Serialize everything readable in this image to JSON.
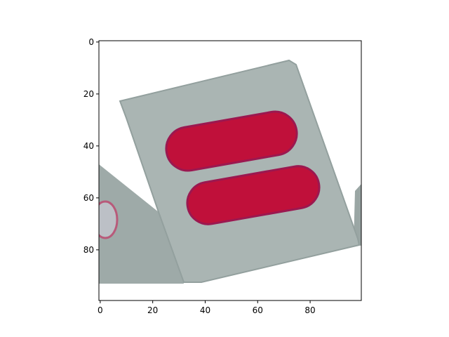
{
  "image_panel": {
    "description_hidden": "",
    "x_axis": {
      "ticks": [
        {
          "value": 0,
          "label": "0"
        },
        {
          "value": 20,
          "label": "20"
        },
        {
          "value": 40,
          "label": "40"
        },
        {
          "value": 60,
          "label": "60"
        },
        {
          "value": 80,
          "label": "80"
        }
      ],
      "range": [
        -0.5,
        99.5
      ]
    },
    "y_axis": {
      "ticks": [
        {
          "value": 0,
          "label": "0"
        },
        {
          "value": 20,
          "label": "20"
        },
        {
          "value": 40,
          "label": "40"
        },
        {
          "value": 60,
          "label": "60"
        },
        {
          "value": 80,
          "label": "80"
        }
      ],
      "range": [
        99.5,
        -0.5
      ],
      "inverted": true
    }
  },
  "colors": {
    "card": "#aab5b3",
    "card_edge": "#8e9896",
    "stripe": "#c0103a",
    "stripe_edge": "#9b1850",
    "background": "#ffffff",
    "lower_card": "#9eaaa8",
    "circle_mark": "#b85a7a"
  }
}
